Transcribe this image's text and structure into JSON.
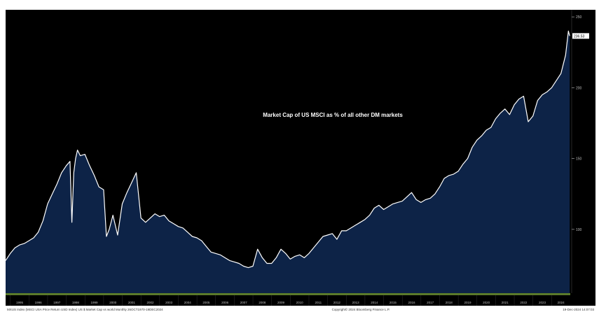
{
  "colors": {
    "background": "#000000",
    "area_fill": "#0d2347",
    "line": "#ffffff",
    "text": "#ffffff",
    "axis_text": "#bfbfbf",
    "grid": "#2a2a2a",
    "baseline_band": "#5a7a2a"
  },
  "chart_data": {
    "type": "area",
    "title": "Market Cap of US MSCI as % of all other DM markets",
    "xlabel": "",
    "ylabel": "",
    "y_ticks": [
      100,
      150,
      200,
      250
    ],
    "ylim": [
      55,
      255
    ],
    "xlim": [
      1994.75,
      2025.0
    ],
    "x_tick_labels": [
      "1995",
      "1996",
      "1997",
      "1998",
      "1999",
      "2000",
      "2001",
      "2002",
      "2003",
      "2004",
      "2005",
      "2006",
      "2007",
      "2008",
      "2009",
      "2010",
      "2011",
      "2012",
      "2013",
      "2014",
      "2015",
      "2016",
      "2017",
      "2018",
      "2019",
      "2020",
      "2021",
      "2022",
      "2023",
      "2024"
    ],
    "grid": false,
    "last_value_label": "236.53",
    "footer_left": "MXUS Index (MSCI USA Price Return USD Index) US $ Market Cap vs world  Monthly 26OCT1970-19DEC2024",
    "footer_center": "Copyright© 2024 Bloomberg Finance L.P.",
    "footer_right": "19-Dec-2024 14:07:03",
    "series": [
      {
        "x": [
          1994.75,
          1995.0,
          1995.25,
          1995.5,
          1995.75,
          1996.0,
          1996.25,
          1996.5,
          1996.75,
          1997.0,
          1997.25,
          1997.5,
          1997.75,
          1998.0,
          1998.2,
          1998.3,
          1998.4,
          1998.5,
          1998.6,
          1998.75,
          1999.0,
          1999.25,
          1999.5,
          1999.75,
          2000.0,
          2000.15,
          2000.3,
          2000.5,
          2000.75,
          2001.0,
          2001.25,
          2001.5,
          2001.75,
          2002.0,
          2002.25,
          2002.5,
          2002.75,
          2003.0,
          2003.25,
          2003.5,
          2003.75,
          2004.0,
          2004.25,
          2004.5,
          2004.75,
          2005.0,
          2005.25,
          2005.5,
          2005.75,
          2006.0,
          2006.25,
          2006.5,
          2006.75,
          2007.0,
          2007.25,
          2007.5,
          2007.75,
          2008.0,
          2008.25,
          2008.5,
          2008.75,
          2009.0,
          2009.25,
          2009.5,
          2009.75,
          2010.0,
          2010.25,
          2010.5,
          2010.75,
          2011.0,
          2011.25,
          2011.5,
          2011.75,
          2012.0,
          2012.25,
          2012.5,
          2012.75,
          2013.0,
          2013.25,
          2013.5,
          2013.75,
          2014.0,
          2014.25,
          2014.5,
          2014.75,
          2015.0,
          2015.25,
          2015.5,
          2015.75,
          2016.0,
          2016.25,
          2016.5,
          2016.75,
          2017.0,
          2017.25,
          2017.5,
          2017.75,
          2018.0,
          2018.25,
          2018.5,
          2018.75,
          2019.0,
          2019.25,
          2019.5,
          2019.75,
          2020.0,
          2020.25,
          2020.5,
          2020.75,
          2021.0,
          2021.25,
          2021.5,
          2021.75,
          2022.0,
          2022.25,
          2022.5,
          2022.75,
          2023.0,
          2023.25,
          2023.5,
          2023.75,
          2024.0,
          2024.25,
          2024.5,
          2024.75,
          2024.9,
          2024.97
        ],
        "y": [
          78,
          83,
          87,
          89,
          90,
          92,
          94,
          98,
          106,
          118,
          125,
          132,
          140,
          145,
          148,
          105,
          140,
          150,
          156,
          152,
          153,
          145,
          138,
          130,
          128,
          95,
          100,
          110,
          96,
          118,
          126,
          133,
          140,
          108,
          105,
          108,
          111,
          109,
          110,
          106,
          104,
          102,
          101,
          98,
          95,
          94,
          92,
          88,
          84,
          83,
          82,
          80,
          78,
          77,
          76,
          74,
          73,
          74,
          86,
          80,
          76,
          76,
          80,
          86,
          83,
          79,
          81,
          82,
          80,
          83,
          87,
          91,
          95,
          96,
          97,
          93,
          99,
          99,
          101,
          103,
          105,
          107,
          110,
          115,
          117,
          114,
          116,
          118,
          119,
          120,
          123,
          126,
          121,
          119,
          121,
          122,
          125,
          130,
          136,
          138,
          139,
          141,
          146,
          150,
          158,
          163,
          166,
          170,
          172,
          178,
          182,
          185,
          181,
          188,
          192,
          194,
          176,
          180,
          191,
          195,
          197,
          200,
          205,
          210,
          223,
          240,
          236.53
        ]
      }
    ]
  }
}
